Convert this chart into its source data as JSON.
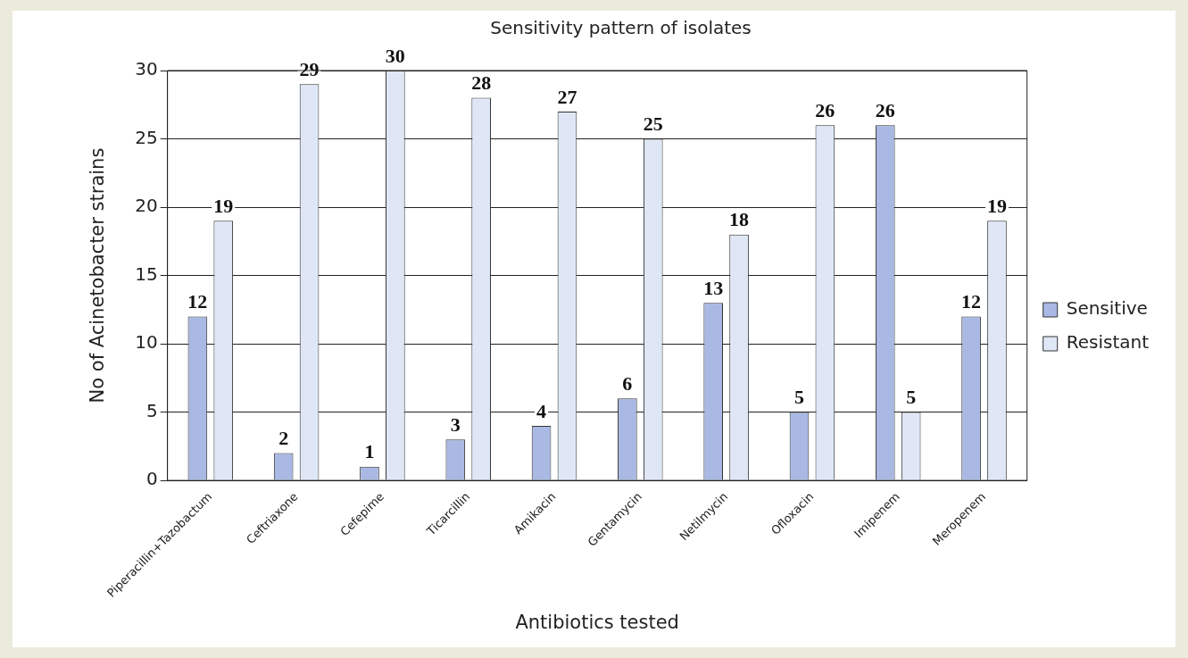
{
  "chart_data": {
    "type": "bar",
    "title": "Sensitivity pattern of isolates",
    "xlabel": "Antibiotics tested",
    "ylabel": "No of Acinetobacter strains",
    "categories": [
      "Piperacillin+Tazobactum",
      "Ceftriaxone",
      "Cefepime",
      "Ticarcillin",
      "Amikacin",
      "Gentamycin",
      "Netilmycin",
      "Ofloxacin",
      "Imipenem",
      "Meropenem"
    ],
    "series": [
      {
        "name": "Sensitive",
        "color": "#a9b9e3",
        "values": [
          12,
          2,
          1,
          3,
          4,
          6,
          13,
          5,
          26,
          12
        ]
      },
      {
        "name": "Resistant",
        "color": "#dfe7f6",
        "values": [
          19,
          29,
          30,
          28,
          27,
          25,
          18,
          26,
          5,
          19
        ]
      }
    ],
    "ylim": [
      0,
      30
    ],
    "yticks": [
      0,
      5,
      10,
      15,
      20,
      25,
      30
    ],
    "grid": "y",
    "legend": "right",
    "data_labels": true
  }
}
